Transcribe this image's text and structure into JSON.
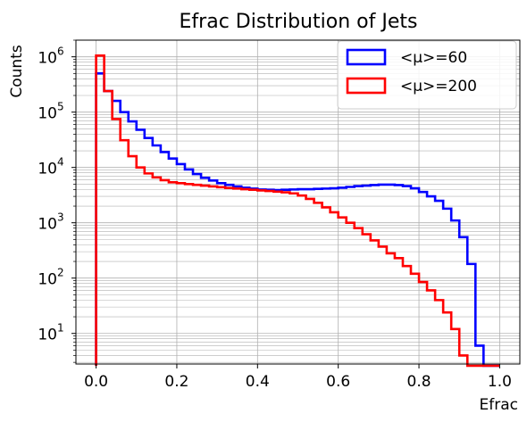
{
  "chart_data": {
    "type": "line",
    "title": "Efrac Distribution of Jets",
    "xlabel": "Efrac",
    "ylabel": "Counts",
    "xlim": [
      -0.05,
      1.05
    ],
    "ylim": [
      2.8,
      2000000
    ],
    "yscale": "log",
    "grid": true,
    "legend_position": "top-right",
    "x_ticks": [
      {
        "value": 0.0,
        "label": "0.0"
      },
      {
        "value": 0.2,
        "label": "0.2"
      },
      {
        "value": 0.4,
        "label": "0.4"
      },
      {
        "value": 0.6,
        "label": "0.6"
      },
      {
        "value": 0.8,
        "label": "0.8"
      },
      {
        "value": 1.0,
        "label": "1.0"
      }
    ],
    "y_ticks": [
      {
        "value": 10,
        "base": "10",
        "exp": "1"
      },
      {
        "value": 100,
        "base": "10",
        "exp": "2"
      },
      {
        "value": 1000,
        "base": "10",
        "exp": "3"
      },
      {
        "value": 10000,
        "base": "10",
        "exp": "4"
      },
      {
        "value": 100000,
        "base": "10",
        "exp": "5"
      },
      {
        "value": 1000000,
        "base": "10",
        "exp": "6"
      }
    ],
    "bin_edges": [
      0,
      0.02,
      0.04,
      0.06,
      0.08,
      0.1,
      0.12,
      0.14,
      0.16,
      0.18,
      0.2,
      0.22,
      0.24,
      0.26,
      0.28,
      0.3,
      0.32,
      0.34,
      0.36,
      0.38,
      0.4,
      0.42,
      0.44,
      0.46,
      0.48,
      0.5,
      0.52,
      0.54,
      0.56,
      0.58,
      0.6,
      0.62,
      0.64,
      0.66,
      0.68,
      0.7,
      0.72,
      0.74,
      0.76,
      0.78,
      0.8,
      0.82,
      0.84,
      0.86,
      0.88,
      0.9,
      0.92,
      0.94,
      0.96,
      0.98,
      1.0
    ],
    "series": [
      {
        "name": "<μ>=60",
        "color": "#0000ff",
        "values": [
          500000,
          240000,
          160000,
          100000,
          68000,
          48000,
          34000,
          25000,
          19000,
          14500,
          11500,
          9200,
          7600,
          6500,
          5800,
          5200,
          4850,
          4550,
          4300,
          4150,
          4000,
          3950,
          3900,
          3950,
          4000,
          4050,
          4050,
          4100,
          4150,
          4200,
          4300,
          4450,
          4600,
          4700,
          4800,
          4900,
          4900,
          4800,
          4600,
          4200,
          3600,
          3000,
          2500,
          1800,
          1100,
          550,
          180,
          6,
          0,
          0
        ]
      },
      {
        "name": "<μ>=200",
        "color": "#ff0000",
        "values": [
          1050000,
          240000,
          75000,
          31000,
          16000,
          10000,
          7800,
          6600,
          5900,
          5400,
          5200,
          5000,
          4850,
          4700,
          4550,
          4400,
          4250,
          4150,
          4050,
          3950,
          3850,
          3750,
          3650,
          3550,
          3400,
          3100,
          2700,
          2300,
          1900,
          1550,
          1250,
          1000,
          800,
          620,
          480,
          370,
          280,
          230,
          165,
          120,
          85,
          60,
          40,
          24,
          12,
          4,
          0,
          0,
          0,
          0
        ]
      }
    ]
  }
}
